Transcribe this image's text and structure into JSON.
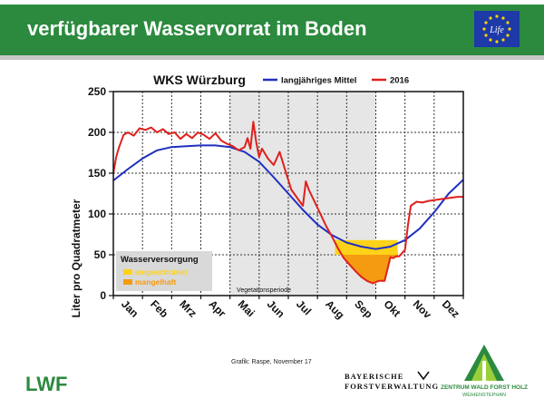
{
  "page": {
    "title": "verfügbarer Wasservorrat im Boden",
    "credit": "Grafik: Raspe, November 17",
    "logos": {
      "eu": "Life",
      "lwf": "LWF",
      "bayern_line1": "BAYERISCHE",
      "bayern_line2": "FORSTVERWALTUNG",
      "zwf_line1": "ZENTRUM WALD FORST HOLZ",
      "zwf_line2": "WEIHENSTEPHAN"
    }
  },
  "colors": {
    "header": "#2b8a3e",
    "mean": "#1f2fc0",
    "year2016": "#e0201c",
    "limited": "#ffd21a",
    "deficient": "#f59b12"
  },
  "chart_data": {
    "type": "line",
    "title": "WKS Würzburg",
    "ylabel": "Liter pro Quadratmeter",
    "xlabel": "",
    "ylim": [
      0,
      250
    ],
    "yticks": [
      0,
      50,
      100,
      150,
      200,
      250
    ],
    "xlim": [
      0,
      12
    ],
    "categories": [
      "Jan",
      "Feb",
      "Mrz",
      "Apr",
      "Mai",
      "Jun",
      "Jul",
      "Aug",
      "Sep",
      "Okt",
      "Nov",
      "Dez"
    ],
    "grid": true,
    "legend_position": "top",
    "shaded_period": {
      "from": 4,
      "to": 9,
      "label": "Vegetationsperiode"
    },
    "legend_box": {
      "title": "Wasserversorgung",
      "entries": [
        {
          "name": "eingeschränkt",
          "color": "#ffd21a"
        },
        {
          "name": "mangelhaft",
          "color": "#f59b12"
        }
      ]
    },
    "deficit_region": {
      "from": 7.6,
      "to": 9.75,
      "upper": 68
    },
    "series": [
      {
        "name": "langjähriges Mittel",
        "color": "#1f2fc0",
        "x": [
          0,
          0.5,
          1,
          1.5,
          2,
          2.5,
          3,
          3.5,
          4,
          4.5,
          5,
          5.5,
          6,
          6.5,
          7,
          7.5,
          8,
          8.5,
          9,
          9.5,
          10,
          10.5,
          11,
          11.5,
          12
        ],
        "y": [
          141,
          155,
          168,
          178,
          182,
          183,
          184,
          184,
          182,
          176,
          164,
          145,
          125,
          105,
          87,
          74,
          65,
          60,
          57,
          60,
          68,
          82,
          102,
          125,
          142
        ]
      },
      {
        "name": "2016",
        "color": "#e0201c",
        "x": [
          0,
          0.1,
          0.2,
          0.35,
          0.5,
          0.7,
          0.9,
          1.1,
          1.3,
          1.5,
          1.7,
          1.9,
          2.1,
          2.3,
          2.5,
          2.7,
          2.9,
          3.1,
          3.3,
          3.5,
          3.7,
          3.9,
          4.1,
          4.3,
          4.5,
          4.6,
          4.7,
          4.8,
          4.9,
          5.0,
          5.1,
          5.3,
          5.5,
          5.7,
          5.9,
          6.1,
          6.3,
          6.5,
          6.6,
          6.7,
          6.9,
          7.1,
          7.3,
          7.5,
          7.7,
          7.9,
          8.1,
          8.3,
          8.5,
          8.7,
          8.9,
          9.1,
          9.3,
          9.5,
          9.6,
          9.7,
          9.8,
          10.0,
          10.1,
          10.2,
          10.4,
          10.6,
          10.8,
          11.0,
          11.2,
          11.4,
          11.6,
          11.8,
          12.0
        ],
        "y": [
          150,
          170,
          182,
          197,
          200,
          196,
          205,
          203,
          206,
          200,
          204,
          198,
          200,
          192,
          198,
          193,
          200,
          197,
          192,
          199,
          190,
          186,
          183,
          178,
          182,
          193,
          180,
          213,
          188,
          170,
          180,
          168,
          160,
          176,
          153,
          130,
          120,
          110,
          140,
          130,
          115,
          100,
          85,
          72,
          58,
          46,
          38,
          30,
          23,
          18,
          15,
          18,
          18,
          47,
          46,
          48,
          48,
          56,
          86,
          110,
          115,
          114,
          116,
          117,
          118,
          119,
          120,
          121,
          121
        ]
      }
    ]
  }
}
